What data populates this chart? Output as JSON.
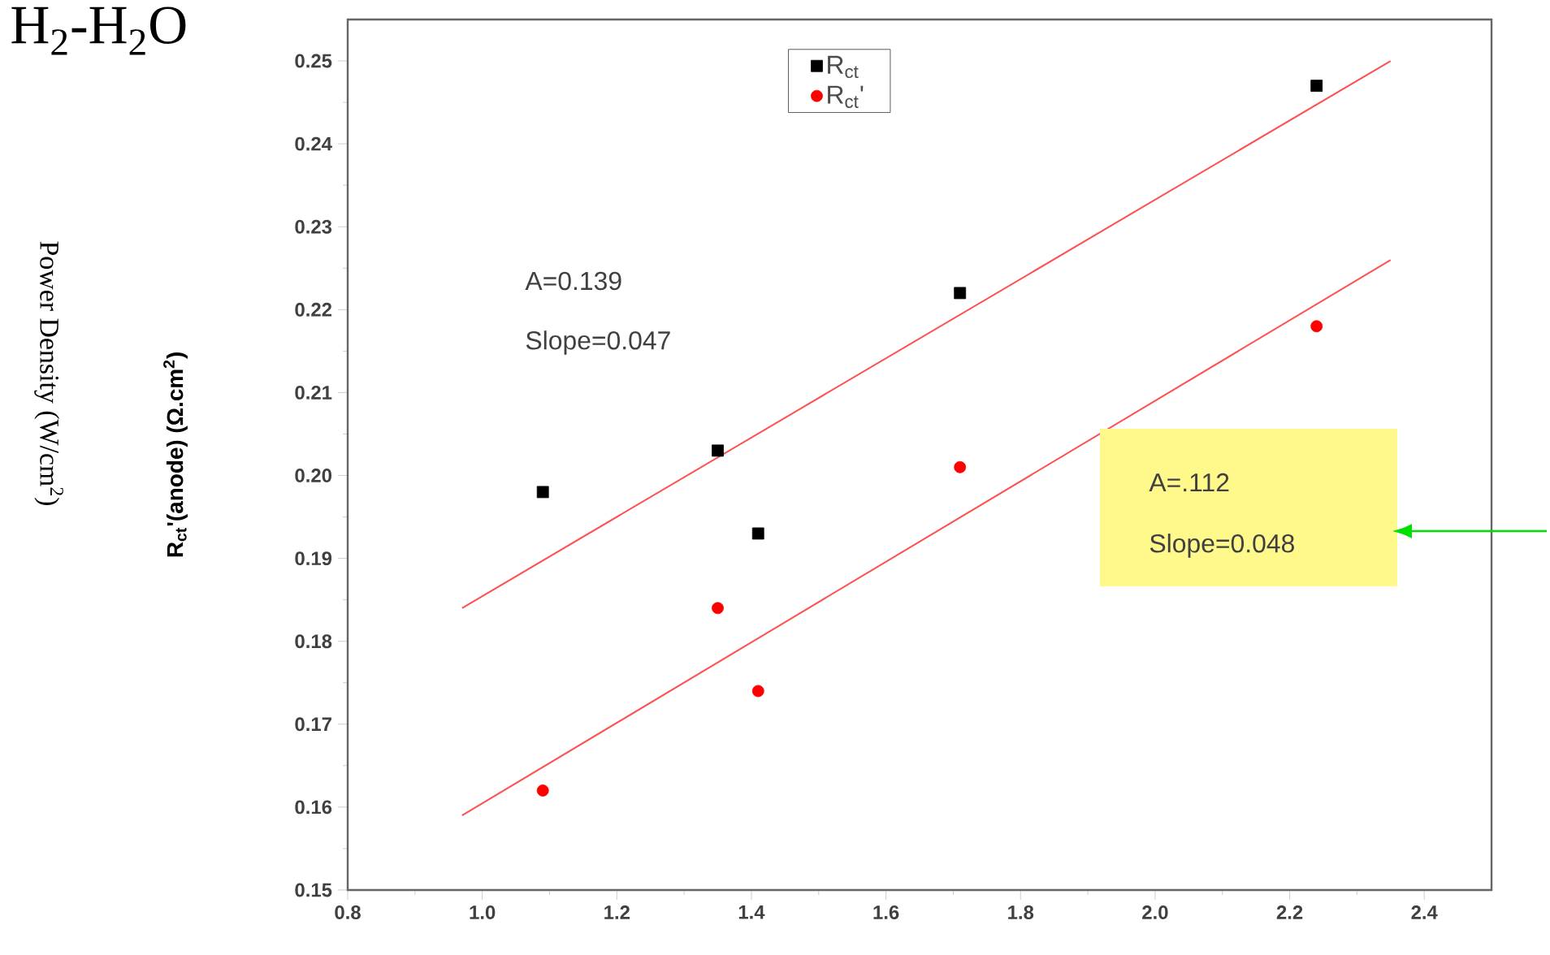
{
  "chart_data": {
    "type": "scatter",
    "title": "H$_{2}$-H$_{2}$O",
    "ylabel": "R$_{ct}$'(anode) (Ω.cm$^{2}$)",
    "annotations": [
      "Power Density (W/cm$^{2}$)",
      "A=0.139",
      "Slope=0.047",
      "A=.112",
      "Slope=0.048"
    ],
    "xlim": [
      0.8,
      2.5
    ],
    "ylim": [
      0.15,
      0.255
    ],
    "xticks": [
      {
        "value": 0.8,
        "label": "0.8"
      },
      {
        "value": 1.0,
        "label": "1.0"
      },
      {
        "value": 1.2,
        "label": "1.2"
      },
      {
        "value": 1.4,
        "label": "1.4"
      },
      {
        "value": 1.6,
        "label": "1.6"
      },
      {
        "value": 1.8,
        "label": "1.8"
      },
      {
        "value": 2.0,
        "label": "2.0"
      },
      {
        "value": 2.2,
        "label": "2.2"
      },
      {
        "value": 2.4,
        "label": "2.4"
      }
    ],
    "yticks": [
      {
        "value": 0.15,
        "label": "0.15"
      },
      {
        "value": 0.16,
        "label": "0.16"
      },
      {
        "value": 0.17,
        "label": "0.17"
      },
      {
        "value": 0.18,
        "label": "0.18"
      },
      {
        "value": 0.19,
        "label": "0.19"
      },
      {
        "value": 0.2,
        "label": "0.20"
      },
      {
        "value": 0.21,
        "label": "0.21"
      },
      {
        "value": 0.22,
        "label": "0.22"
      },
      {
        "value": 0.23,
        "label": "0.23"
      },
      {
        "value": 0.24,
        "label": "0.24"
      },
      {
        "value": 0.25,
        "label": "0.25"
      }
    ],
    "legend": "top",
    "series": [
      {
        "name": "R$_{ct}$",
        "type": "scatter",
        "color": "#000000",
        "marker": "square",
        "x": [
          1.09,
          1.35,
          1.41,
          1.71,
          2.24
        ],
        "values": [
          0.198,
          0.203,
          0.193,
          0.222,
          0.247
        ]
      },
      {
        "name": "R$_{ct}$'",
        "type": "scatter",
        "color": "#ff0000",
        "marker": "circle",
        "x": [
          1.09,
          1.35,
          1.41,
          1.71,
          2.24
        ],
        "values": [
          0.162,
          0.184,
          0.174,
          0.201,
          0.218
        ]
      },
      {
        "type": "line",
        "color": "#ff5050",
        "marker": "none",
        "x": [
          0.97,
          2.35
        ],
        "values": [
          0.184,
          0.25
        ]
      },
      {
        "type": "line",
        "color": "#ff5050",
        "marker": "none",
        "x": [
          0.97,
          2.35
        ],
        "values": [
          0.159,
          0.226
        ]
      }
    ]
  }
}
